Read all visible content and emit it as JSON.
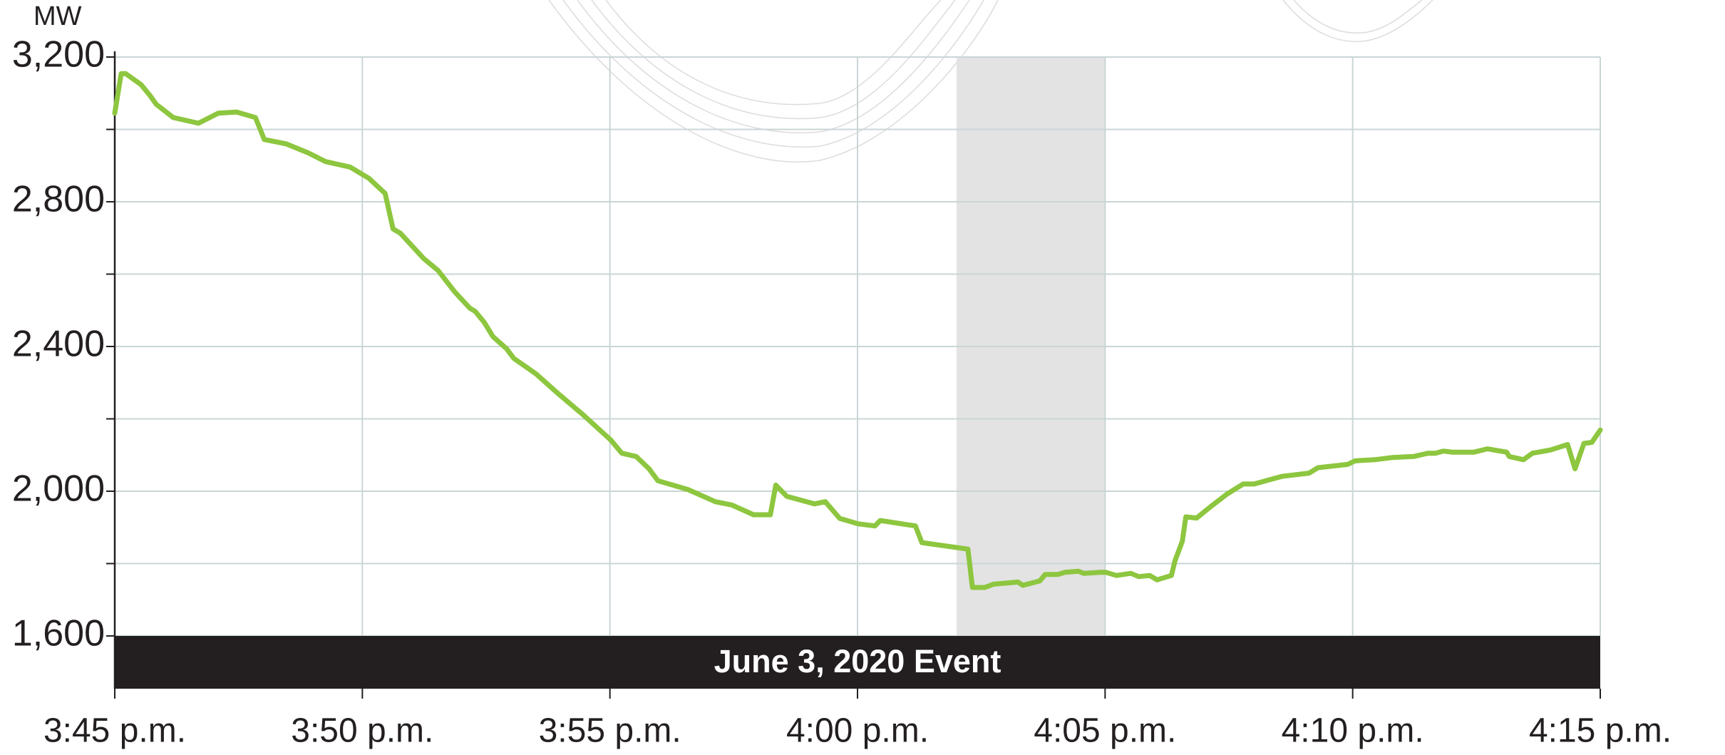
{
  "chart_data": {
    "type": "line",
    "y_unit_label": "MW",
    "annotation": "June 3, 2020 Event",
    "color": "#8dc63f",
    "shade_color": "#e3e3e3",
    "shaded_span": [
      17,
      20
    ],
    "grid": true,
    "xlim": [
      0,
      30
    ],
    "xticks": [
      {
        "value": 0,
        "label": "3:45 p.m."
      },
      {
        "value": 5,
        "label": "3:50 p.m."
      },
      {
        "value": 10,
        "label": "3:55 p.m."
      },
      {
        "value": 15,
        "label": "4:00 p.m."
      },
      {
        "value": 20,
        "label": "4:05 p.m."
      },
      {
        "value": 25,
        "label": "4:10 p.m."
      },
      {
        "value": 30,
        "label": "4:15 p.m."
      }
    ],
    "ylim": [
      1600,
      3200
    ],
    "yticks": [
      {
        "value": 1600,
        "label": "1,600"
      },
      {
        "value": 2000,
        "label": "2,000"
      },
      {
        "value": 2400,
        "label": "2,400"
      },
      {
        "value": 2800,
        "label": "2,800"
      },
      {
        "value": 3200,
        "label": "3,200"
      }
    ],
    "minor_yticks": [
      1800,
      2200,
      2600,
      3000
    ],
    "x": [
      0,
      0.13,
      0.22,
      0.53,
      0.71,
      0.84,
      1.18,
      1.69,
      2.09,
      2.46,
      2.84,
      3.02,
      3.46,
      3.91,
      4.26,
      4.75,
      5.13,
      5.46,
      5.62,
      5.77,
      6.24,
      6.53,
      6.86,
      7.17,
      7.28,
      7.46,
      7.64,
      7.91,
      8.06,
      8.51,
      8.91,
      9.46,
      10.02,
      10.24,
      10.53,
      10.79,
      10.97,
      11.57,
      12.13,
      12.46,
      12.9,
      13.24,
      13.35,
      13.57,
      14.13,
      14.35,
      14.64,
      15.01,
      15.35,
      15.46,
      16.17,
      16.3,
      17.23,
      17.32,
      17.57,
      17.75,
      18.24,
      18.34,
      18.68,
      18.79,
      19.05,
      19.19,
      19.46,
      19.57,
      19.9,
      20.01,
      20.23,
      20.52,
      20.68,
      20.9,
      21.05,
      21.34,
      21.41,
      21.56,
      21.63,
      21.85,
      22.12,
      22.46,
      22.79,
      23.01,
      23.57,
      24.12,
      24.3,
      24.9,
      25.05,
      25.45,
      25.79,
      26.23,
      26.52,
      26.67,
      26.83,
      27.01,
      27.45,
      27.72,
      28.11,
      28.16,
      28.45,
      28.63,
      29.0,
      29.34,
      29.49,
      29.67,
      29.83,
      30.0
    ],
    "values": [
      3045,
      3154,
      3154,
      3124,
      3094,
      3069,
      3033,
      3017,
      3045,
      3048,
      3033,
      2972,
      2960,
      2935,
      2911,
      2896,
      2865,
      2823,
      2725,
      2713,
      2643,
      2610,
      2552,
      2506,
      2497,
      2467,
      2427,
      2394,
      2367,
      2324,
      2275,
      2211,
      2141,
      2105,
      2096,
      2062,
      2029,
      2005,
      1971,
      1962,
      1935,
      1935,
      2017,
      1986,
      1965,
      1971,
      1925,
      1910,
      1904,
      1919,
      1904,
      1858,
      1840,
      1734,
      1734,
      1743,
      1749,
      1740,
      1752,
      1770,
      1770,
      1776,
      1779,
      1773,
      1776,
      1776,
      1767,
      1773,
      1764,
      1767,
      1755,
      1767,
      1807,
      1862,
      1929,
      1926,
      1956,
      1992,
      2020,
      2020,
      2041,
      2050,
      2065,
      2074,
      2084,
      2087,
      2093,
      2096,
      2105,
      2105,
      2111,
      2108,
      2108,
      2117,
      2108,
      2096,
      2087,
      2105,
      2114,
      2129,
      2062,
      2132,
      2135,
      2169
    ]
  }
}
